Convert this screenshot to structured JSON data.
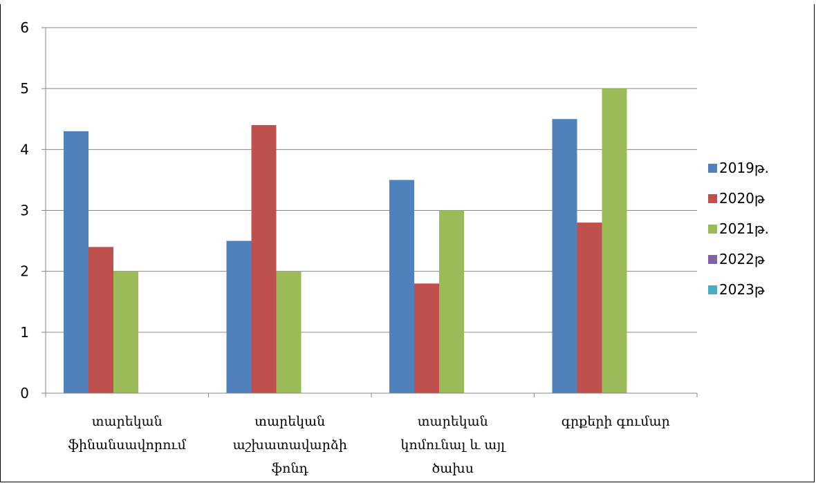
{
  "chart_data": {
    "type": "bar",
    "categories": [
      [
        "տարեկան",
        "ֆինանսավորում"
      ],
      [
        "տարեկան",
        "աշխատավարձի",
        "ֆոնդ"
      ],
      [
        "տարեկան",
        "կոմունալ և այլ",
        "ծախս"
      ],
      [
        "գրքերի գումար"
      ]
    ],
    "series": [
      {
        "name": "2019թ.",
        "color": "#4F81BD",
        "values": [
          4.3,
          2.5,
          3.5,
          4.5
        ]
      },
      {
        "name": "2020թ",
        "color": "#C0504D",
        "values": [
          2.4,
          4.4,
          1.8,
          2.8
        ]
      },
      {
        "name": "2021թ.",
        "color": "#9BBB59",
        "values": [
          2.0,
          2.0,
          3.0,
          5.0
        ]
      },
      {
        "name": "2022թ",
        "color": "#8064A2",
        "values": [
          null,
          null,
          null,
          null
        ]
      },
      {
        "name": "2023թ",
        "color": "#4BACC6",
        "values": [
          null,
          null,
          null,
          null
        ]
      }
    ],
    "y_ticks": [
      "0",
      "1",
      "2",
      "3",
      "4",
      "5",
      "6"
    ],
    "ylim": [
      0,
      6
    ],
    "grid": true,
    "legend_position": "right",
    "title": "",
    "xlabel": "",
    "ylabel": ""
  }
}
